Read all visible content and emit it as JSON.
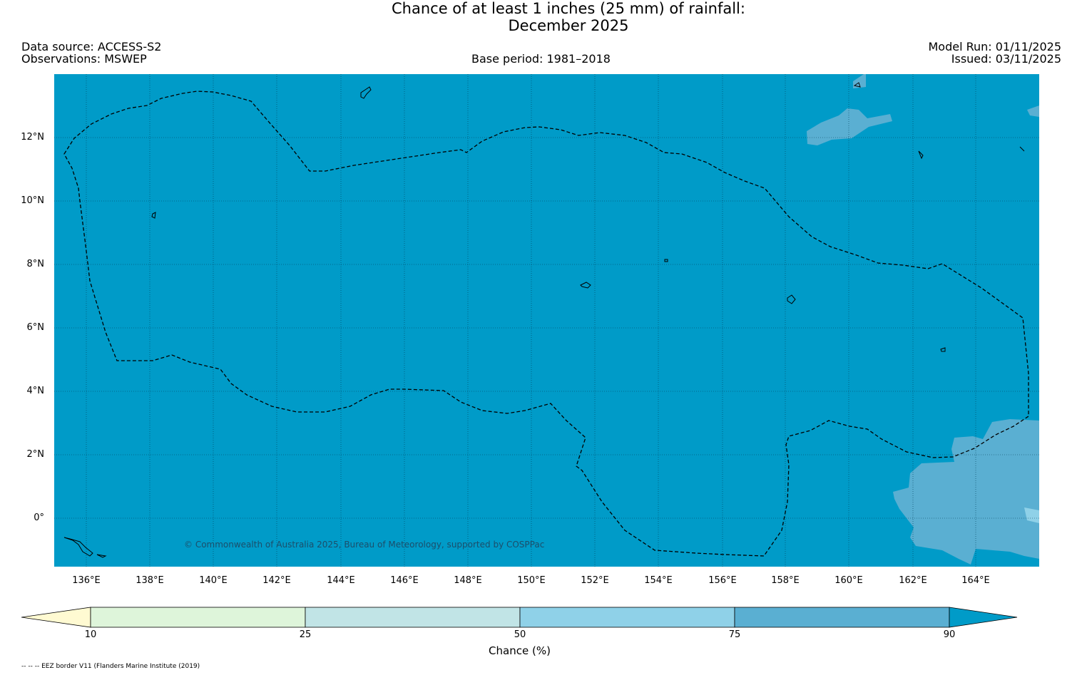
{
  "header": {
    "title_line1": "Chance of at least 1 inches (25  mm) of rainfall:",
    "title_line2": "December 2025",
    "data_source": "Data source: ACCESS-S2",
    "observations": "Observations: MSWEP",
    "base_period": "Base period: 1981–2018",
    "model_run": "Model Run: 01/11/2025",
    "issued": "Issued: 03/11/2025"
  },
  "map": {
    "background_color": "#009BC8",
    "light_color": "#5AAFD2",
    "lighter_color": "#8FD1E8",
    "y_ticks": [
      "12°N",
      "10°N",
      "8°N",
      "6°N",
      "4°N",
      "2°N",
      "0°"
    ],
    "x_ticks": [
      "136°E",
      "138°E",
      "140°E",
      "142°E",
      "144°E",
      "146°E",
      "148°E",
      "150°E",
      "152°E",
      "154°E",
      "156°E",
      "158°E",
      "160°E",
      "162°E",
      "164°E"
    ],
    "copyright": "© Commonwealth of Australia 2025, Bureau of Meteorology, supported by COSPPac"
  },
  "colorbar": {
    "colors": [
      "#FFFAD2",
      "#DEF5DA",
      "#C1E4E6",
      "#8FD1E8",
      "#5AAFD2",
      "#009BC8"
    ],
    "ticks": [
      "10",
      "25",
      "50",
      "75",
      "90"
    ],
    "label": "Chance (%)"
  },
  "footnote": "-- -- -- EEZ border V11 (Flanders Marine Institute (2019)"
}
